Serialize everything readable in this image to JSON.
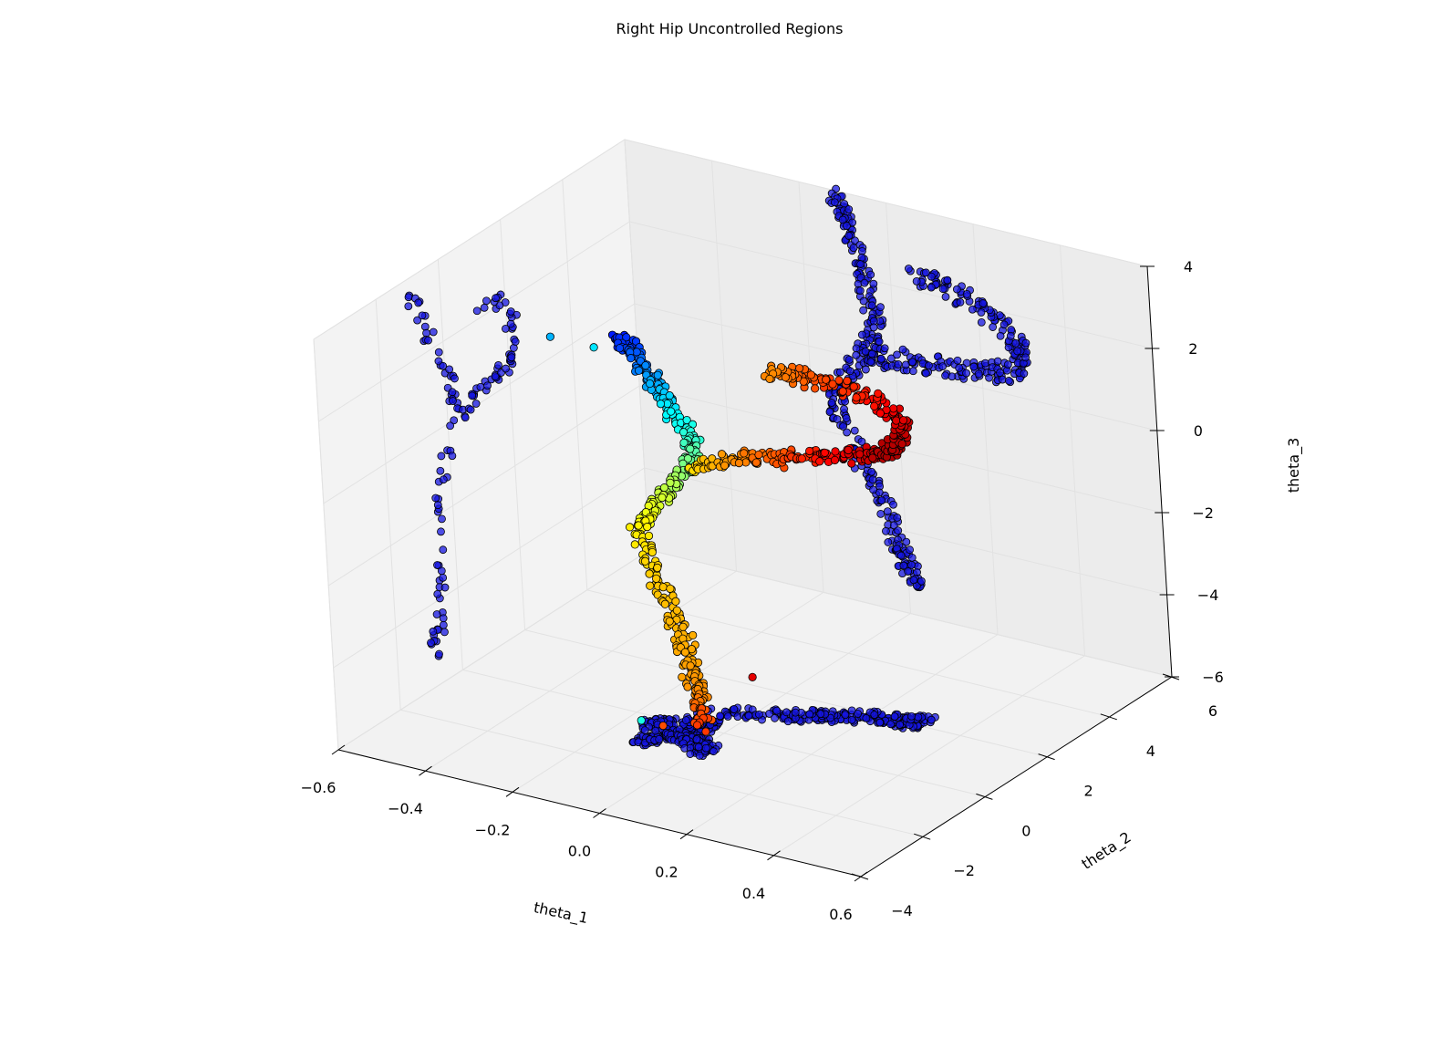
{
  "chart_data": {
    "type": "scatter",
    "title": "Right Hip Uncontrolled Regions",
    "xlabel": "theta_1",
    "ylabel": "theta_2",
    "zlabel": "theta_3",
    "xlim": [
      -0.6,
      0.6
    ],
    "ylim": [
      -4,
      6
    ],
    "zlim": [
      -6,
      4
    ],
    "xticks": [
      {
        "v": -0.6,
        "label": "−0.6"
      },
      {
        "v": -0.4,
        "label": "−0.4"
      },
      {
        "v": -0.2,
        "label": "−0.2"
      },
      {
        "v": 0.0,
        "label": "0.0"
      },
      {
        "v": 0.2,
        "label": "0.2"
      },
      {
        "v": 0.4,
        "label": "0.4"
      },
      {
        "v": 0.6,
        "label": "0.6"
      }
    ],
    "yticks": [
      {
        "v": -4,
        "label": "−4"
      },
      {
        "v": -2,
        "label": "−2"
      },
      {
        "v": 0,
        "label": "0"
      },
      {
        "v": 2,
        "label": "2"
      },
      {
        "v": 4,
        "label": "4"
      },
      {
        "v": 6,
        "label": "6"
      }
    ],
    "zticks": [
      {
        "v": -6,
        "label": "−6"
      },
      {
        "v": -4,
        "label": "−4"
      },
      {
        "v": -2,
        "label": "−2"
      },
      {
        "v": 0,
        "label": "0"
      },
      {
        "v": 2,
        "label": "2"
      },
      {
        "v": 4,
        "label": "4"
      }
    ],
    "colormap": "jet",
    "grid": true,
    "colors": {
      "projection": "#1515e0",
      "edge": "#000000",
      "pane_left": "#f3f3f3",
      "pane_back": "#ececec",
      "pane_floor": "#f2f2f2",
      "grid": "#e2e2e2"
    },
    "main_curve": [
      {
        "x": -0.12,
        "y": -1.0,
        "z": 3.8,
        "c": 0.15
      },
      {
        "x": -0.1,
        "y": -0.8,
        "z": 3.4,
        "c": 0.2
      },
      {
        "x": -0.08,
        "y": -0.5,
        "z": 2.6,
        "c": 0.28
      },
      {
        "x": -0.06,
        "y": -0.2,
        "z": 1.8,
        "c": 0.36
      },
      {
        "x": -0.04,
        "y": 0.1,
        "z": 1.0,
        "c": 0.42
      },
      {
        "x": -0.06,
        "y": 0.2,
        "z": 0.2,
        "c": 0.5
      },
      {
        "x": -0.12,
        "y": 0.0,
        "z": -0.6,
        "c": 0.58
      },
      {
        "x": -0.15,
        "y": -0.3,
        "z": -1.3,
        "c": 0.64
      },
      {
        "x": -0.1,
        "y": -0.4,
        "z": -2.4,
        "c": 0.68
      },
      {
        "x": -0.05,
        "y": -0.5,
        "z": -3.4,
        "c": 0.7
      },
      {
        "x": -0.02,
        "y": -0.6,
        "z": -4.3,
        "c": 0.72
      },
      {
        "x": 0.0,
        "y": -0.7,
        "z": -4.8,
        "c": 0.74
      },
      {
        "x": 0.02,
        "y": -0.9,
        "z": -5.3,
        "c": 0.82
      }
    ],
    "loop_curve": [
      {
        "x": -0.08,
        "y": 0.6,
        "z": 0.0,
        "c": 0.66
      },
      {
        "x": 0.0,
        "y": 1.0,
        "z": 0.2,
        "c": 0.74
      },
      {
        "x": 0.1,
        "y": 1.4,
        "z": 0.3,
        "c": 0.82
      },
      {
        "x": 0.2,
        "y": 1.8,
        "z": 0.4,
        "c": 0.9
      },
      {
        "x": 0.28,
        "y": 2.0,
        "z": 0.6,
        "c": 0.96
      },
      {
        "x": 0.3,
        "y": 2.2,
        "z": 1.2,
        "c": 0.93
      },
      {
        "x": 0.24,
        "y": 2.0,
        "z": 1.8,
        "c": 0.86
      },
      {
        "x": 0.14,
        "y": 1.6,
        "z": 2.2,
        "c": 0.8
      },
      {
        "x": 0.06,
        "y": 1.2,
        "z": 2.4,
        "c": 0.74
      }
    ],
    "isolated_points": [
      {
        "x": -0.5,
        "y": 2.0,
        "z": 1.4,
        "c": 0.3
      },
      {
        "x": -0.4,
        "y": 2.0,
        "z": 1.4,
        "c": 0.35
      },
      {
        "x": 0.05,
        "y": -3.2,
        "z": -4.0,
        "c": 0.4
      },
      {
        "x": 0.1,
        "y": -3.2,
        "z": -4.0,
        "c": 0.8
      },
      {
        "x": 0.3,
        "y": -3.0,
        "z": -2.4,
        "c": 0.9
      }
    ]
  }
}
